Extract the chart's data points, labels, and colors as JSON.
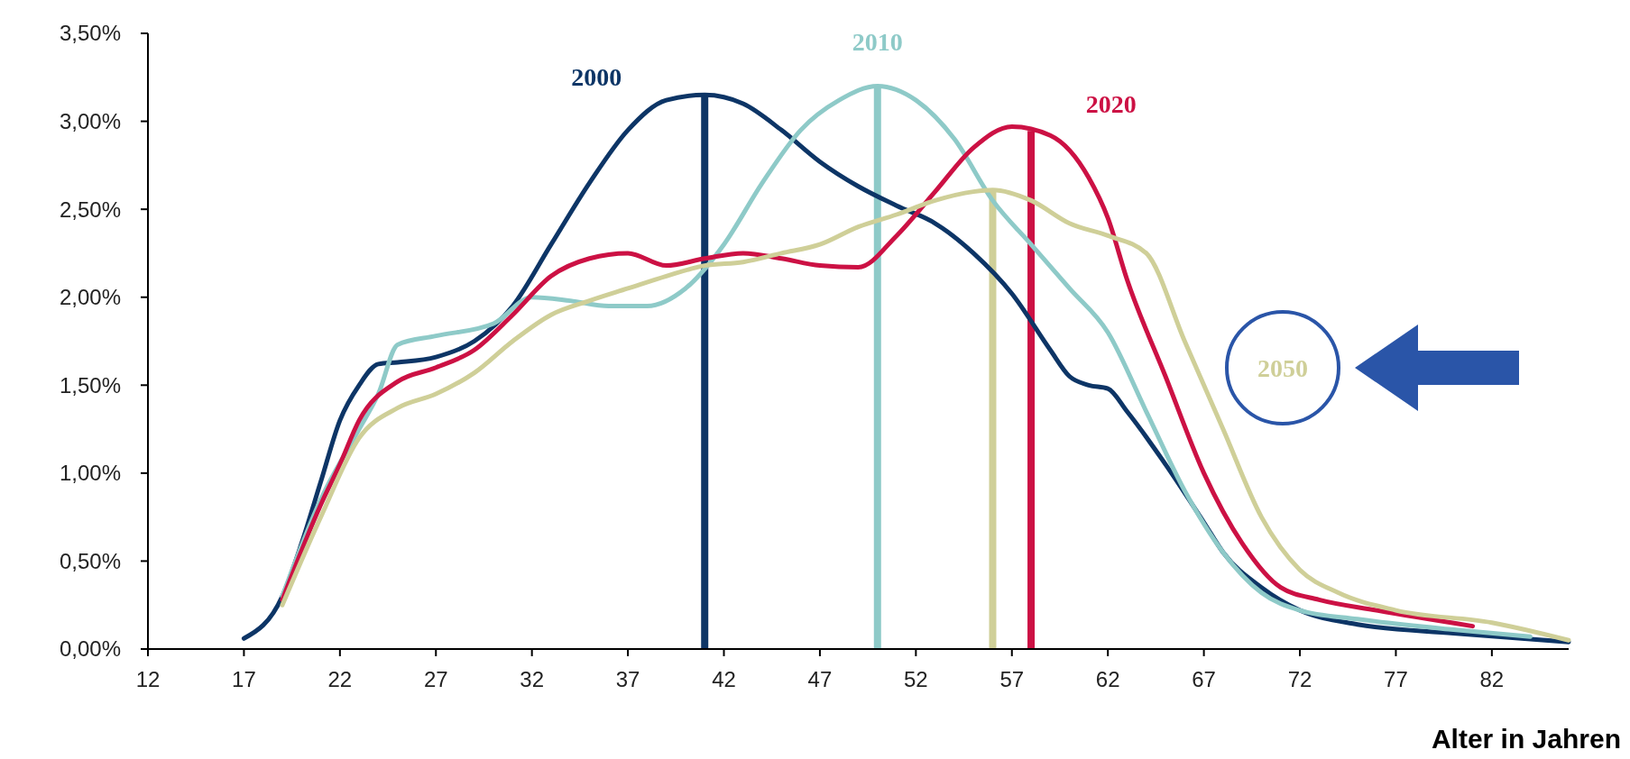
{
  "chart_data": {
    "type": "line",
    "xlabel": "Alter in Jahren",
    "xlim": [
      12,
      86
    ],
    "xticks": [
      12,
      17,
      22,
      27,
      32,
      37,
      42,
      47,
      52,
      57,
      62,
      67,
      72,
      77,
      82
    ],
    "ylim": [
      0,
      3.5
    ],
    "yticks": [
      {
        "value": 0,
        "label": "0,00%"
      },
      {
        "value": 0.5,
        "label": "0,50%"
      },
      {
        "value": 1,
        "label": "1,00%"
      },
      {
        "value": 1.5,
        "label": "1,50%"
      },
      {
        "value": 2,
        "label": "2,00%"
      },
      {
        "value": 2.5,
        "label": "2,50%"
      },
      {
        "value": 3,
        "label": "3,00%"
      },
      {
        "value": 3.5,
        "label": "3,50%"
      }
    ],
    "grid": false,
    "legend": false,
    "marker": "none",
    "line_style": "solid",
    "series": [
      {
        "name": "2000",
        "color": "#0d3566",
        "x": [
          17,
          19,
          20,
          21,
          22,
          23,
          24,
          25,
          27,
          29,
          31,
          33,
          35,
          37,
          39,
          41,
          43,
          45,
          47,
          49,
          51,
          53,
          55,
          57,
          59,
          60,
          61,
          62,
          63,
          65,
          67,
          68,
          70,
          72,
          75,
          80,
          86
        ],
        "values": [
          0.06,
          0.3,
          0.6,
          0.95,
          1.3,
          1.5,
          1.62,
          1.63,
          1.66,
          1.75,
          1.95,
          2.3,
          2.65,
          2.95,
          3.12,
          3.15,
          3.1,
          2.95,
          2.77,
          2.63,
          2.52,
          2.42,
          2.25,
          2.02,
          1.7,
          1.55,
          1.5,
          1.48,
          1.35,
          1.05,
          0.72,
          0.55,
          0.35,
          0.22,
          0.14,
          0.09,
          0.04
        ]
      },
      {
        "name": "2010",
        "color": "#8ecac8",
        "x": [
          19,
          21,
          23,
          24,
          25,
          27,
          30,
          32,
          34,
          36,
          38,
          40,
          42,
          44,
          46,
          48,
          50,
          52,
          54,
          56,
          58,
          60,
          62,
          64,
          66,
          68,
          70,
          72,
          75,
          80,
          84
        ],
        "values": [
          0.3,
          0.85,
          1.25,
          1.45,
          1.73,
          1.78,
          1.85,
          2.0,
          1.98,
          1.95,
          1.95,
          2.05,
          2.3,
          2.65,
          2.95,
          3.12,
          3.2,
          3.12,
          2.9,
          2.55,
          2.3,
          2.05,
          1.8,
          1.35,
          0.9,
          0.55,
          0.32,
          0.22,
          0.17,
          0.11,
          0.07
        ]
      },
      {
        "name": "2020",
        "color": "#cc1144",
        "x": [
          19,
          21,
          22,
          23,
          25,
          27,
          29,
          31,
          33,
          35,
          37,
          39,
          41,
          43,
          45,
          47,
          49,
          51,
          53,
          55,
          57,
          59,
          61,
          62,
          63,
          65,
          67,
          69,
          71,
          73,
          76,
          81
        ],
        "values": [
          0.28,
          0.82,
          1.05,
          1.3,
          1.52,
          1.6,
          1.7,
          1.9,
          2.12,
          2.22,
          2.25,
          2.18,
          2.22,
          2.25,
          2.22,
          2.18,
          2.17,
          2.35,
          2.6,
          2.85,
          2.97,
          2.92,
          2.68,
          2.45,
          2.1,
          1.55,
          1.0,
          0.6,
          0.35,
          0.28,
          0.22,
          0.13
        ]
      },
      {
        "name": "2050",
        "color": "#cfcf98",
        "x": [
          19,
          21,
          23,
          25,
          27,
          29,
          31,
          33,
          35,
          37,
          39,
          41,
          43,
          45,
          47,
          49,
          51,
          53,
          55,
          56,
          58,
          60,
          62,
          64,
          66,
          68,
          70,
          72,
          74,
          77,
          82,
          86
        ],
        "values": [
          0.25,
          0.75,
          1.2,
          1.37,
          1.45,
          1.57,
          1.75,
          1.9,
          1.98,
          2.05,
          2.12,
          2.18,
          2.2,
          2.25,
          2.3,
          2.4,
          2.47,
          2.55,
          2.6,
          2.61,
          2.55,
          2.42,
          2.35,
          2.25,
          1.75,
          1.25,
          0.75,
          0.45,
          0.32,
          0.22,
          0.15,
          0.05
        ]
      }
    ],
    "ref_lines": [
      {
        "axis": "x",
        "value": 41,
        "label": null,
        "color": "#0d3566"
      },
      {
        "axis": "x",
        "value": 50,
        "label": null,
        "color": "#8ecac8"
      },
      {
        "axis": "x",
        "value": 56,
        "label": null,
        "color": "#cfcf98"
      },
      {
        "axis": "x",
        "value": 58,
        "label": null,
        "color": "#cc1144"
      }
    ]
  }
}
